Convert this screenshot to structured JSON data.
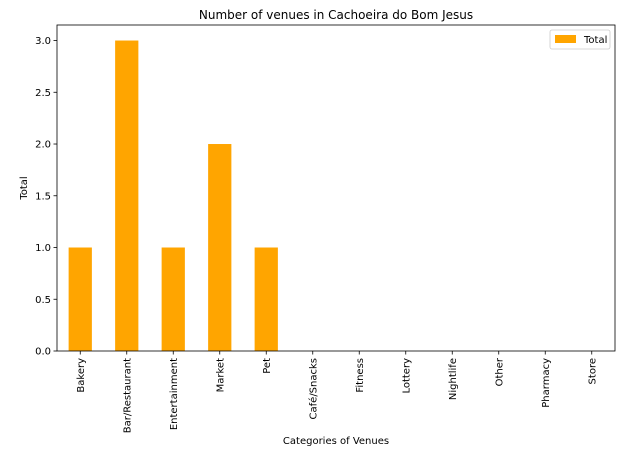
{
  "chart_data": {
    "type": "bar",
    "title": "Number of venues in Cachoeira do Bom Jesus",
    "xlabel": "Categories of Venues",
    "ylabel": "Total",
    "categories": [
      "Bakery",
      "Bar/Restaurant",
      "Entertainment",
      "Market",
      "Pet",
      "Café/Snacks",
      "Fitness",
      "Lottery",
      "Nightlife",
      "Other",
      "Pharmacy",
      "Store"
    ],
    "series": [
      {
        "name": "Total",
        "color": "#ffa500",
        "values": [
          1,
          3,
          1,
          2,
          1,
          0,
          0,
          0,
          0,
          0,
          0,
          0
        ]
      }
    ],
    "ylim": [
      0,
      3.15
    ],
    "yticks": [
      "0.0",
      "0.5",
      "1.0",
      "1.5",
      "2.0",
      "2.5",
      "3.0"
    ],
    "grid": false,
    "legend": "top-right"
  }
}
